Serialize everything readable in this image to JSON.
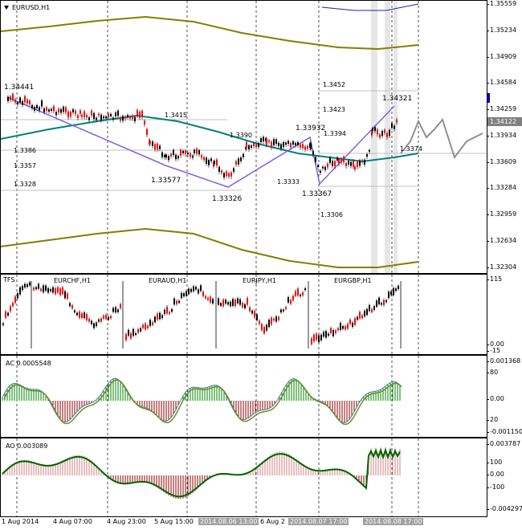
{
  "main": {
    "title": "EURUSD,H1",
    "price_axis": [
      "1.35559",
      "1.35234",
      "1.34909",
      "1.34584",
      "1.34259",
      "1.33934",
      "1.33609",
      "1.33284",
      "1.32959",
      "1.32634",
      "1.32304"
    ],
    "current_price": "1.34122",
    "labels": {
      "l_34441": "1.34441",
      "l_13386": "1.3386",
      "l_13357": "1.3357",
      "l_13328": "1.3328",
      "l_13415": "1.3415",
      "l_133577": "1.33577",
      "l_133326": "1.33326",
      "l_13390": "1.3390",
      "l_133932": "1.33932",
      "l_13394": "1.3394",
      "l_13333": "1.3333",
      "l_133367": "1.33367",
      "l_13306": "1.3306",
      "l_13452": "1.3452",
      "l_13423": "1.3423",
      "l_134321": "1.34321",
      "l_13374": "1.3374"
    }
  },
  "sub1": {
    "title": "TFS",
    "symbols": [
      "EURCHF,H1",
      "EURAUD,H1",
      "EURJPY,H1",
      "EURGBP,H1"
    ],
    "axis": [
      "115",
      "0.00",
      "-15"
    ]
  },
  "sub2": {
    "title": "AC 0.0005548",
    "axis": [
      "0.001368",
      "80",
      "0.00",
      "20",
      "-0.001150"
    ]
  },
  "sub3": {
    "title": "AO 0.003089",
    "axis": [
      "0.003787",
      "100",
      "0.00",
      "-100",
      "-0.004297"
    ]
  },
  "time_axis": [
    {
      "label": "1 Aug 2014",
      "hl": false
    },
    {
      "label": "4 Aug 07:00",
      "hl": false
    },
    {
      "label": "4 Aug 23:00",
      "hl": false
    },
    {
      "label": "5 Aug 15:00",
      "hl": false
    },
    {
      "label": "2014.08.06 13:00",
      "hl": true
    },
    {
      "label": "6 Aug 2",
      "hl": false
    },
    {
      "label": "2014.08.07 17:00",
      "hl": true
    },
    {
      "label": "2014.08.08 17:00",
      "hl": true
    }
  ],
  "colors": {
    "bull": "#000000",
    "bear": "#ff0000",
    "ma": "#008080",
    "band": "#808000",
    "zigzag": "#8060e0",
    "ac_up": "#008000",
    "ac_dn": "#8b0000"
  }
}
